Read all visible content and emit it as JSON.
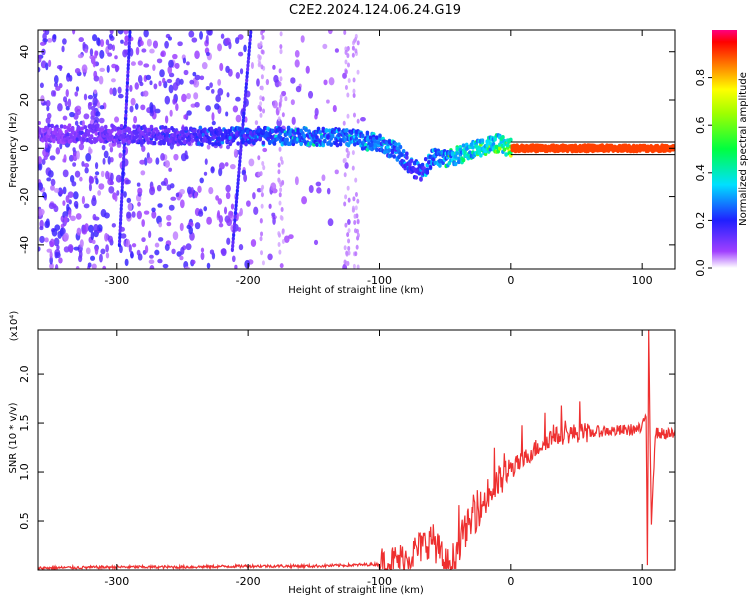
{
  "title": "C2E2.2024.124.06.24.G19",
  "chart_data": [
    {
      "type": "heatmap",
      "xlabel": "Height of straight line (km)",
      "ylabel": "Frequency (Hz)",
      "xlim": [
        -360,
        125
      ],
      "ylim": [
        -50,
        49
      ],
      "xticks": [
        "-300",
        "-200",
        "-100",
        "0",
        "100"
      ],
      "yticks": [
        "-40",
        "-20",
        "0",
        "20",
        "40"
      ],
      "colorbar": {
        "label": "Normalized spectral amplitude",
        "range": [
          0.0,
          1.0
        ],
        "ticks": [
          "0.0",
          "0.2",
          "0.4",
          "0.6",
          "0.8"
        ],
        "colormap": "rainbow (white → violet → blue → cyan → green → yellow → red)"
      },
      "ridge": {
        "x": [
          -360,
          -300,
          -250,
          -200,
          -150,
          -120,
          -100,
          -85,
          -75,
          -68,
          -60,
          -50,
          -40,
          -30,
          -20,
          -10,
          0,
          50,
          100,
          125
        ],
        "y": [
          6,
          6,
          5,
          5,
          5,
          4,
          2,
          -2,
          -8,
          -10,
          -4,
          -4,
          -3,
          -1,
          1,
          2,
          0,
          0,
          0,
          0
        ],
        "amplitude": [
          0.15,
          0.2,
          0.25,
          0.35,
          0.45,
          0.45,
          0.45,
          0.4,
          0.35,
          0.3,
          0.45,
          0.55,
          0.6,
          0.6,
          0.65,
          0.7,
          0.9,
          0.9,
          0.9,
          0.9
        ]
      },
      "streaks": [
        {
          "x0": -298,
          "x1": -290,
          "y0": -40,
          "y1": 48
        },
        {
          "x0": -212,
          "x1": -198,
          "y0": -42,
          "y1": 48
        }
      ]
    },
    {
      "type": "line",
      "xlabel": "Height of straight line (km)",
      "ylabel": "SNR (10 * v/v)",
      "yscale_label": "(x10⁴)",
      "xlim": [
        -360,
        125
      ],
      "ylim": [
        0,
        2.45
      ],
      "xticks": [
        "-300",
        "-200",
        "-100",
        "0",
        "100"
      ],
      "yticks": [
        "0.5",
        "1.0",
        "1.5",
        "2.0"
      ],
      "series": [
        {
          "color": "#ee3030",
          "x": [
            -360,
            -300,
            -250,
            -200,
            -150,
            -120,
            -100,
            -90,
            -80,
            -70,
            -62,
            -60,
            -55,
            -50,
            -45,
            -40,
            -35,
            -30,
            -25,
            -20,
            -15,
            -10,
            -5,
            0,
            5,
            10,
            15,
            20,
            25,
            30,
            40,
            50,
            60,
            70,
            80,
            90,
            100,
            103,
            104,
            105,
            106,
            107,
            110,
            125
          ],
          "y": [
            0.02,
            0.03,
            0.03,
            0.04,
            0.04,
            0.05,
            0.06,
            0.08,
            0.12,
            0.22,
            0.3,
            0.32,
            0.2,
            0.05,
            0.07,
            0.25,
            0.4,
            0.5,
            0.6,
            0.7,
            0.8,
            0.88,
            0.95,
            1.02,
            1.08,
            1.12,
            1.2,
            1.25,
            1.3,
            1.35,
            1.38,
            1.4,
            1.4,
            1.42,
            1.42,
            1.43,
            1.44,
            1.6,
            0.05,
            2.45,
            1.4,
            0.5,
            1.4,
            1.38
          ]
        }
      ]
    }
  ]
}
